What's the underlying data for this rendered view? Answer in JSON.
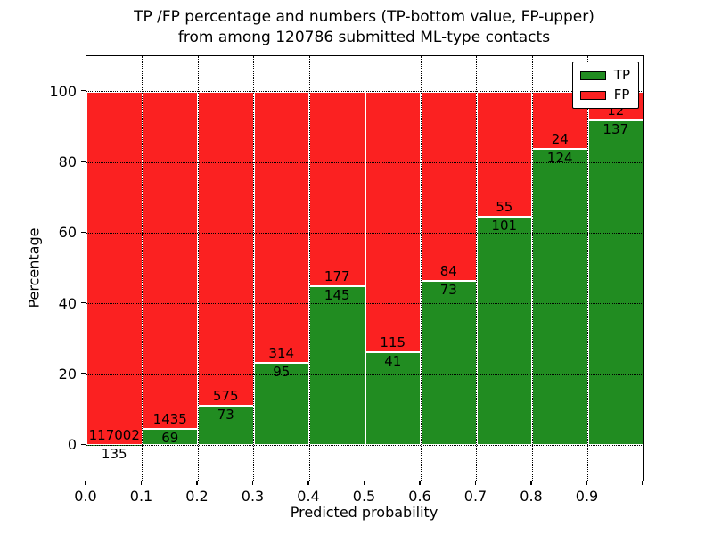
{
  "title": {
    "line1": "TP /FP percentage and numbers (TP-bottom value, FP-upper)",
    "line2": "from among 120786 submitted ML-type contacts"
  },
  "chart_data": {
    "type": "bar",
    "stacked": true,
    "title": "TP /FP percentage and numbers (TP-bottom value, FP-upper) from among 120786 submitted ML-type contacts",
    "xlabel": "Predicted probability",
    "ylabel": "Percentage",
    "total_contacts": 120786,
    "bin_width": 0.1,
    "bin_left_edges": [
      0.0,
      0.1,
      0.2,
      0.3,
      0.4,
      0.5,
      0.6,
      0.7,
      0.8,
      0.9
    ],
    "series": [
      {
        "name": "TP",
        "color": "#218c21",
        "counts": [
          135,
          69,
          73,
          95,
          145,
          41,
          73,
          101,
          124,
          137
        ],
        "pct": [
          0.12,
          4.59,
          11.27,
          23.23,
          45.03,
          26.28,
          46.5,
          64.74,
          83.78,
          91.95
        ]
      },
      {
        "name": "FP",
        "color": "#fb2121",
        "counts": [
          117002,
          1435,
          575,
          314,
          177,
          115,
          84,
          55,
          24,
          12
        ],
        "pct": [
          99.88,
          95.41,
          88.73,
          76.77,
          54.97,
          73.72,
          53.5,
          35.26,
          16.22,
          8.05
        ]
      }
    ],
    "xticks": [
      "0.0",
      "0.1",
      "0.2",
      "0.3",
      "0.4",
      "0.5",
      "0.6",
      "0.7",
      "0.8",
      "0.9"
    ],
    "yticks": [
      0,
      20,
      40,
      60,
      80,
      100
    ],
    "xlim": [
      0.0,
      1.0
    ],
    "ylim": [
      -10,
      110
    ],
    "grid": true,
    "grid_style": "dotted",
    "bar_edge_color": "#ffffff",
    "annotation_note": "TP-bottom value, FP-upper",
    "legend": {
      "position": "upper right",
      "entries": [
        {
          "label": "TP",
          "color": "#218c21"
        },
        {
          "label": "FP",
          "color": "#fb2121"
        }
      ]
    }
  }
}
